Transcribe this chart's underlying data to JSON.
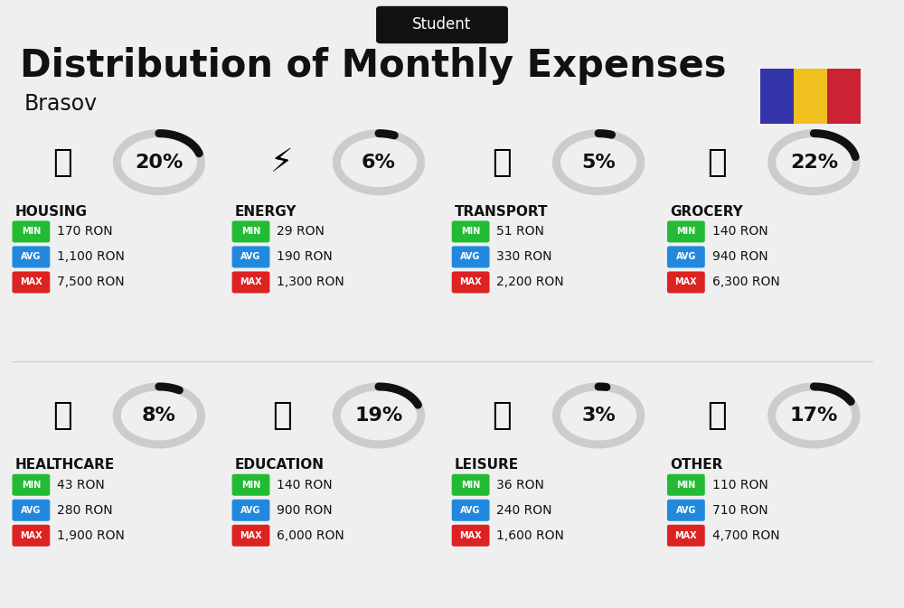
{
  "title": "Distribution of Monthly Expenses",
  "subtitle": "Student",
  "city": "Brasov",
  "bg_color": "#efefef",
  "categories": [
    {
      "name": "HOUSING",
      "pct": 20,
      "emoji": "🏢",
      "min": "170 RON",
      "avg": "1,100 RON",
      "max": "7,500 RON",
      "row": 0,
      "col": 0
    },
    {
      "name": "ENERGY",
      "pct": 6,
      "emoji": "⚡",
      "min": "29 RON",
      "avg": "190 RON",
      "max": "1,300 RON",
      "row": 0,
      "col": 1
    },
    {
      "name": "TRANSPORT",
      "pct": 5,
      "emoji": "🚌",
      "min": "51 RON",
      "avg": "330 RON",
      "max": "2,200 RON",
      "row": 0,
      "col": 2
    },
    {
      "name": "GROCERY",
      "pct": 22,
      "emoji": "🛒",
      "min": "140 RON",
      "avg": "940 RON",
      "max": "6,300 RON",
      "row": 0,
      "col": 3
    },
    {
      "name": "HEALTHCARE",
      "pct": 8,
      "emoji": "🏥",
      "min": "43 RON",
      "avg": "280 RON",
      "max": "1,900 RON",
      "row": 1,
      "col": 0
    },
    {
      "name": "EDUCATION",
      "pct": 19,
      "emoji": "🎓",
      "min": "140 RON",
      "avg": "900 RON",
      "max": "6,000 RON",
      "row": 1,
      "col": 1
    },
    {
      "name": "LEISURE",
      "pct": 3,
      "emoji": "🛍",
      "min": "36 RON",
      "avg": "240 RON",
      "max": "1,600 RON",
      "row": 1,
      "col": 2
    },
    {
      "name": "OTHER",
      "pct": 17,
      "emoji": "💰",
      "min": "110 RON",
      "avg": "710 RON",
      "max": "4,700 RON",
      "row": 1,
      "col": 3
    }
  ],
  "min_color": "#22bb33",
  "avg_color": "#2288dd",
  "max_color": "#dd2222",
  "donut_track_color": "#cccccc",
  "donut_fill_color": "#111111",
  "flag_colors": [
    "#3333aa",
    "#f0c020",
    "#cc2233"
  ],
  "title_fontsize": 30,
  "subtitle_fontsize": 12,
  "city_fontsize": 17,
  "cat_fontsize": 11,
  "val_fontsize": 10,
  "pct_fontsize": 16
}
